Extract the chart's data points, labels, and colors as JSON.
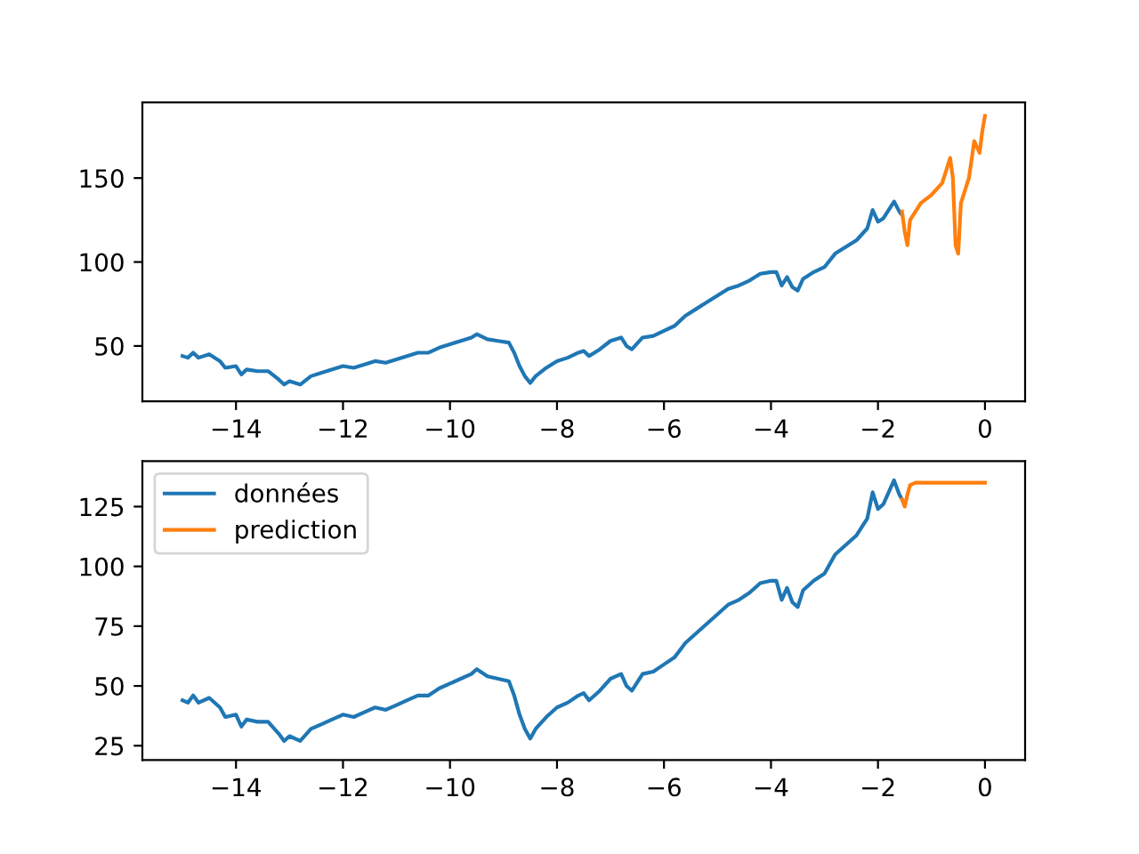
{
  "chart_data": [
    {
      "type": "line",
      "xlim": [
        -15.75,
        0.75
      ],
      "ylim": [
        17,
        195
      ],
      "xticks": [
        {
          "value": -14,
          "label": "−14"
        },
        {
          "value": -12,
          "label": "−12"
        },
        {
          "value": -10,
          "label": "−10"
        },
        {
          "value": -8,
          "label": "−8"
        },
        {
          "value": -6,
          "label": "−6"
        },
        {
          "value": -4,
          "label": "−4"
        },
        {
          "value": -2,
          "label": "−2"
        },
        0
      ],
      "yticks": [
        50,
        100,
        150
      ],
      "grid": false,
      "legend": false,
      "series": [
        {
          "color": "#1f77b4",
          "x": [
            -15.0,
            -14.9,
            -14.8,
            -14.7,
            -14.5,
            -14.3,
            -14.2,
            -14.0,
            -13.9,
            -13.8,
            -13.6,
            -13.4,
            -13.2,
            -13.1,
            -13.0,
            -12.8,
            -12.6,
            -12.4,
            -12.2,
            -12.0,
            -11.8,
            -11.6,
            -11.4,
            -11.2,
            -11.0,
            -10.8,
            -10.6,
            -10.4,
            -10.2,
            -10.0,
            -9.8,
            -9.6,
            -9.5,
            -9.3,
            -9.1,
            -8.9,
            -8.8,
            -8.7,
            -8.6,
            -8.5,
            -8.4,
            -8.2,
            -8.0,
            -7.8,
            -7.6,
            -7.5,
            -7.4,
            -7.2,
            -7.0,
            -6.8,
            -6.7,
            -6.6,
            -6.4,
            -6.2,
            -6.0,
            -5.8,
            -5.6,
            -5.4,
            -5.2,
            -5.0,
            -4.8,
            -4.6,
            -4.4,
            -4.2,
            -4.0,
            -3.9,
            -3.8,
            -3.7,
            -3.6,
            -3.5,
            -3.4,
            -3.2,
            -3.0,
            -2.8,
            -2.6,
            -2.4,
            -2.2,
            -2.1,
            -2.0,
            -1.9,
            -1.8,
            -1.7,
            -1.6,
            -1.55
          ],
          "values": [
            44,
            43,
            46,
            43,
            45,
            41,
            37,
            38,
            33,
            36,
            35,
            35,
            30,
            27,
            29,
            27,
            32,
            34,
            36,
            38,
            37,
            39,
            41,
            40,
            42,
            44,
            46,
            46,
            49,
            51,
            53,
            55,
            57,
            54,
            53,
            52,
            46,
            38,
            32,
            28,
            32,
            37,
            41,
            43,
            46,
            47,
            44,
            48,
            53,
            55,
            50,
            48,
            55,
            56,
            59,
            62,
            68,
            72,
            76,
            80,
            84,
            86,
            89,
            93,
            94,
            94,
            86,
            91,
            85,
            83,
            90,
            94,
            97,
            105,
            109,
            113,
            120,
            131,
            124,
            126,
            131,
            136,
            130,
            128
          ]
        },
        {
          "color": "#ff7f0e",
          "x": [
            -1.55,
            -1.5,
            -1.45,
            -1.4,
            -1.2,
            -1.0,
            -0.8,
            -0.65,
            -0.6,
            -0.55,
            -0.5,
            -0.45,
            -0.3,
            -0.2,
            -0.1,
            -0.05,
            0
          ],
          "values": [
            130,
            118,
            110,
            125,
            135,
            140,
            147,
            162,
            150,
            110,
            105,
            135,
            150,
            172,
            165,
            178,
            187
          ]
        }
      ]
    },
    {
      "type": "line",
      "xlim": [
        -15.75,
        0.75
      ],
      "ylim": [
        19,
        144
      ],
      "xticks": [
        {
          "value": -14,
          "label": "−14"
        },
        {
          "value": -12,
          "label": "−12"
        },
        {
          "value": -10,
          "label": "−10"
        },
        {
          "value": -8,
          "label": "−8"
        },
        {
          "value": -6,
          "label": "−6"
        },
        {
          "value": -4,
          "label": "−4"
        },
        {
          "value": -2,
          "label": "−2"
        },
        0
      ],
      "yticks": [
        25,
        50,
        75,
        100,
        125
      ],
      "grid": false,
      "legend": "top left",
      "series": [
        {
          "name": "données",
          "color": "#1f77b4",
          "x": [
            -15.0,
            -14.9,
            -14.8,
            -14.7,
            -14.5,
            -14.3,
            -14.2,
            -14.0,
            -13.9,
            -13.8,
            -13.6,
            -13.4,
            -13.2,
            -13.1,
            -13.0,
            -12.8,
            -12.6,
            -12.4,
            -12.2,
            -12.0,
            -11.8,
            -11.6,
            -11.4,
            -11.2,
            -11.0,
            -10.8,
            -10.6,
            -10.4,
            -10.2,
            -10.0,
            -9.8,
            -9.6,
            -9.5,
            -9.3,
            -9.1,
            -8.9,
            -8.8,
            -8.7,
            -8.6,
            -8.5,
            -8.4,
            -8.2,
            -8.0,
            -7.8,
            -7.6,
            -7.5,
            -7.4,
            -7.2,
            -7.0,
            -6.8,
            -6.7,
            -6.6,
            -6.4,
            -6.2,
            -6.0,
            -5.8,
            -5.6,
            -5.4,
            -5.2,
            -5.0,
            -4.8,
            -4.6,
            -4.4,
            -4.2,
            -4.0,
            -3.9,
            -3.8,
            -3.7,
            -3.6,
            -3.5,
            -3.4,
            -3.2,
            -3.0,
            -2.8,
            -2.6,
            -2.4,
            -2.2,
            -2.1,
            -2.0,
            -1.9,
            -1.8,
            -1.7,
            -1.6,
            -1.55
          ],
          "values": [
            44,
            43,
            46,
            43,
            45,
            41,
            37,
            38,
            33,
            36,
            35,
            35,
            30,
            27,
            29,
            27,
            32,
            34,
            36,
            38,
            37,
            39,
            41,
            40,
            42,
            44,
            46,
            46,
            49,
            51,
            53,
            55,
            57,
            54,
            53,
            52,
            46,
            38,
            32,
            28,
            32,
            37,
            41,
            43,
            46,
            47,
            44,
            48,
            53,
            55,
            50,
            48,
            55,
            56,
            59,
            62,
            68,
            72,
            76,
            80,
            84,
            86,
            89,
            93,
            94,
            94,
            86,
            91,
            85,
            83,
            90,
            94,
            97,
            105,
            109,
            113,
            120,
            131,
            124,
            126,
            131,
            136,
            130,
            128
          ]
        },
        {
          "name": "prediction",
          "color": "#ff7f0e",
          "x": [
            -1.55,
            -1.5,
            -1.45,
            -1.4,
            -1.3,
            0
          ],
          "values": [
            128,
            125,
            130,
            134,
            135,
            135
          ]
        }
      ]
    }
  ]
}
